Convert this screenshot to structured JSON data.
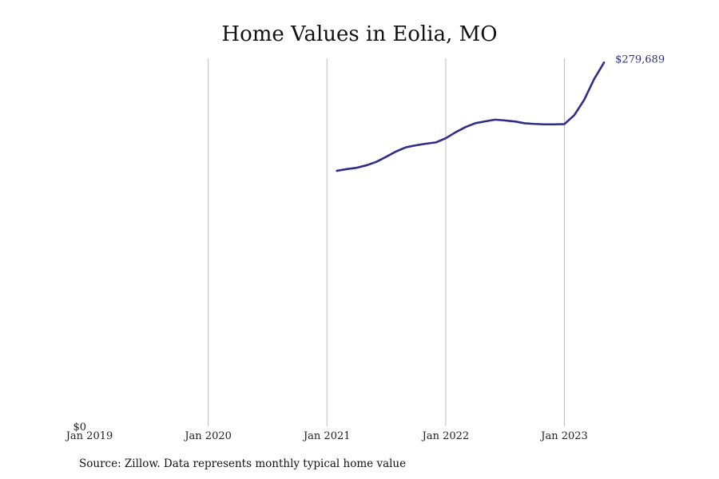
{
  "chart_data": {
    "type": "line",
    "title": "Home Values in Eolia, MO",
    "xlabel": "",
    "ylabel": "",
    "x_ticks": [
      "Jan 2019",
      "Jan 2020",
      "Jan 2021",
      "Jan 2022",
      "Jan 2023"
    ],
    "y_ticks": [
      {
        "value": 0,
        "label": "$0"
      }
    ],
    "xlim": [
      "2019-01",
      "2023-10"
    ],
    "ylim": [
      0,
      283000
    ],
    "grid": "vertical",
    "legend": "none",
    "end_label": "$279,689",
    "series": [
      {
        "color": "#2e2d8a",
        "points": [
          {
            "x": "2021-02",
            "y": 196500
          },
          {
            "x": "2021-03",
            "y": 197800
          },
          {
            "x": "2021-04",
            "y": 198800
          },
          {
            "x": "2021-05",
            "y": 200700
          },
          {
            "x": "2021-06",
            "y": 203400
          },
          {
            "x": "2021-07",
            "y": 207300
          },
          {
            "x": "2021-08",
            "y": 211400
          },
          {
            "x": "2021-09",
            "y": 214600
          },
          {
            "x": "2021-10",
            "y": 216100
          },
          {
            "x": "2021-11",
            "y": 217300
          },
          {
            "x": "2021-12",
            "y": 218300
          },
          {
            "x": "2022-01",
            "y": 221500
          },
          {
            "x": "2022-02",
            "y": 226100
          },
          {
            "x": "2022-03",
            "y": 230100
          },
          {
            "x": "2022-04",
            "y": 233100
          },
          {
            "x": "2022-05",
            "y": 234500
          },
          {
            "x": "2022-06",
            "y": 235800
          },
          {
            "x": "2022-07",
            "y": 235200
          },
          {
            "x": "2022-08",
            "y": 234400
          },
          {
            "x": "2022-09",
            "y": 233000
          },
          {
            "x": "2022-10",
            "y": 232500
          },
          {
            "x": "2022-11",
            "y": 232200
          },
          {
            "x": "2022-12",
            "y": 232200
          },
          {
            "x": "2023-01",
            "y": 232400
          },
          {
            "x": "2023-02",
            "y": 239300
          },
          {
            "x": "2023-03",
            "y": 251100
          },
          {
            "x": "2023-04",
            "y": 267000
          },
          {
            "x": "2023-05",
            "y": 279689
          }
        ]
      }
    ]
  },
  "source_text": "Source: Zillow. Data represents monthly typical home value"
}
